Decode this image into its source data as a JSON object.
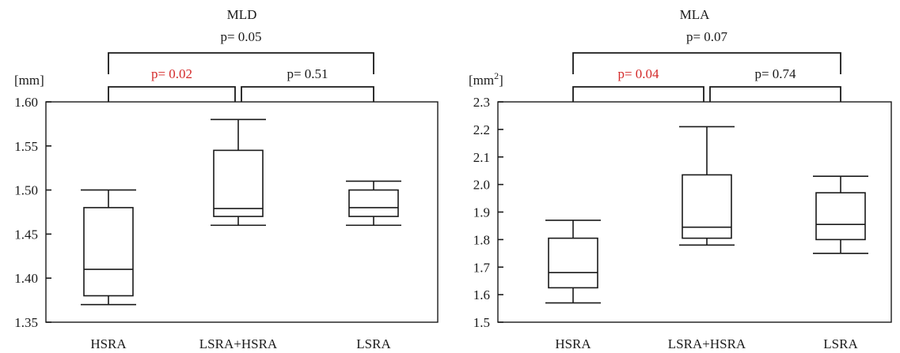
{
  "chart_data": [
    {
      "type": "box",
      "title": "MLD",
      "unit_label": "[mm]",
      "unit_superscript": "",
      "ylim": [
        1.35,
        1.6
      ],
      "y_ticks": [
        "1.35",
        "1.40",
        "1.45",
        "1.50",
        "1.55",
        "1.60"
      ],
      "categories": [
        "HSRA",
        "LSRA+HSRA",
        "LSRA"
      ],
      "boxes": [
        {
          "category": "HSRA",
          "min": 1.37,
          "q1": 1.38,
          "median": 1.41,
          "q3": 1.48,
          "max": 1.5
        },
        {
          "category": "LSRA+HSRA",
          "min": 1.46,
          "q1": 1.47,
          "median": 1.479,
          "q3": 1.545,
          "max": 1.58
        },
        {
          "category": "LSRA",
          "min": 1.46,
          "q1": 1.47,
          "median": 1.48,
          "q3": 1.5,
          "max": 1.51
        }
      ],
      "comparisons": [
        {
          "from": 0,
          "to": 2,
          "label": "p= 0.05",
          "color": "#1a1a1a",
          "level": "outer"
        },
        {
          "from": 0,
          "to": 1,
          "label": "p= 0.02",
          "color": "#d42a2a",
          "level": "inner"
        },
        {
          "from": 1,
          "to": 2,
          "label": "p= 0.51",
          "color": "#1a1a1a",
          "level": "inner"
        }
      ]
    },
    {
      "type": "box",
      "title": "MLA",
      "unit_label": "[mm",
      "unit_superscript": "2",
      "unit_suffix": "]",
      "ylim": [
        1.5,
        2.3
      ],
      "y_ticks": [
        "1.5",
        "1.6",
        "1.7",
        "1.8",
        "1.9",
        "2.0",
        "2.1",
        "2.2",
        "2.3"
      ],
      "categories": [
        "HSRA",
        "LSRA+HSRA",
        "LSRA"
      ],
      "boxes": [
        {
          "category": "HSRA",
          "min": 1.57,
          "q1": 1.625,
          "median": 1.68,
          "q3": 1.805,
          "max": 1.87
        },
        {
          "category": "LSRA+HSRA",
          "min": 1.78,
          "q1": 1.805,
          "median": 1.845,
          "q3": 2.035,
          "max": 2.21
        },
        {
          "category": "LSRA",
          "min": 1.75,
          "q1": 1.8,
          "median": 1.855,
          "q3": 1.97,
          "max": 2.03
        }
      ],
      "comparisons": [
        {
          "from": 0,
          "to": 2,
          "label": "p= 0.07",
          "color": "#1a1a1a",
          "level": "outer"
        },
        {
          "from": 0,
          "to": 1,
          "label": "p= 0.04",
          "color": "#d42a2a",
          "level": "inner"
        },
        {
          "from": 1,
          "to": 2,
          "label": "p= 0.74",
          "color": "#1a1a1a",
          "level": "inner"
        }
      ]
    }
  ]
}
